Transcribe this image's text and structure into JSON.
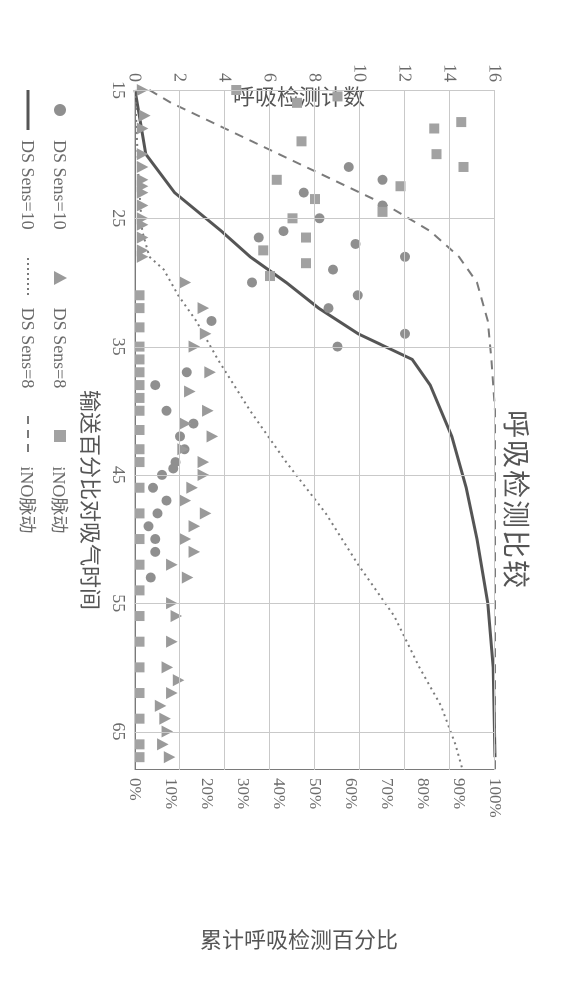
{
  "title": "呼吸检测比较",
  "axes": {
    "x": {
      "label": "输送百分比对吸气时间",
      "min": 15,
      "max": 68,
      "ticks": [
        15,
        25,
        35,
        45,
        55,
        65
      ]
    },
    "y_left": {
      "label": "呼吸检测计数",
      "min": 0,
      "max": 16,
      "ticks": [
        0,
        2,
        4,
        6,
        8,
        10,
        12,
        14,
        16
      ]
    },
    "y_right": {
      "label": "累计呼吸检测百分比",
      "min": 0,
      "max": 100,
      "ticks": [
        0,
        10,
        20,
        30,
        40,
        50,
        60,
        70,
        80,
        90,
        100
      ]
    }
  },
  "colors": {
    "background": "#ffffff",
    "plot_border": "#7a7a7a",
    "grid": "#c9c9c9",
    "text": "#6a6a6a",
    "series_circle": "#8f8f8f",
    "series_triangle": "#9a9a9a",
    "series_square": "#a2a2a2",
    "line_solid": "#555555",
    "line_dot": "#7a7a7a",
    "line_dash": "#7a7a7a"
  },
  "marker_style": {
    "circle_r": 5,
    "triangle_size": 11,
    "square_size": 10,
    "line_width_solid": 3,
    "line_width_dot": 2,
    "line_width_dash": 2
  },
  "series": {
    "circles": {
      "label": "DS Sens=10",
      "points": [
        [
          21,
          9.5
        ],
        [
          22,
          11
        ],
        [
          23,
          7.5
        ],
        [
          24,
          11
        ],
        [
          25,
          8.2
        ],
        [
          26,
          6.6
        ],
        [
          26.5,
          5.5
        ],
        [
          27,
          9.8
        ],
        [
          28,
          12
        ],
        [
          29,
          8.8
        ],
        [
          30,
          5.2
        ],
        [
          31,
          9.9
        ],
        [
          32,
          8.6
        ],
        [
          33,
          3.4
        ],
        [
          34,
          12
        ],
        [
          35,
          9.0
        ],
        [
          37,
          2.3
        ],
        [
          38,
          0.9
        ],
        [
          40,
          1.4
        ],
        [
          41,
          2.6
        ],
        [
          42,
          2.0
        ],
        [
          43,
          2.2
        ],
        [
          44,
          1.8
        ],
        [
          44.5,
          1.7
        ],
        [
          45,
          1.2
        ],
        [
          46,
          0.8
        ],
        [
          47,
          1.4
        ],
        [
          48,
          1.0
        ],
        [
          49,
          0.6
        ],
        [
          50,
          0.9
        ],
        [
          51,
          0.9
        ],
        [
          53,
          0.7
        ]
      ]
    },
    "triangles": {
      "label": "DS Sens=8",
      "points": [
        [
          15,
          0.3
        ],
        [
          17,
          0.4
        ],
        [
          18,
          0.3
        ],
        [
          20,
          0.3
        ],
        [
          21,
          0.3
        ],
        [
          22,
          0.3
        ],
        [
          22.5,
          0.3
        ],
        [
          23,
          0.3
        ],
        [
          24,
          0.3
        ],
        [
          25,
          0.3
        ],
        [
          25.5,
          0.3
        ],
        [
          26.5,
          0.3
        ],
        [
          27.5,
          0.3
        ],
        [
          28,
          0.3
        ],
        [
          30,
          2.2
        ],
        [
          32,
          3.0
        ],
        [
          34,
          3.1
        ],
        [
          35,
          2.6
        ],
        [
          37,
          3.3
        ],
        [
          38.5,
          2.4
        ],
        [
          40,
          3.2
        ],
        [
          41,
          2.2
        ],
        [
          42,
          3.4
        ],
        [
          43,
          2.1
        ],
        [
          44,
          3.0
        ],
        [
          45,
          3.0
        ],
        [
          46,
          2.5
        ],
        [
          47,
          2.2
        ],
        [
          48,
          3.1
        ],
        [
          49,
          2.6
        ],
        [
          50,
          2.2
        ],
        [
          51,
          2.6
        ],
        [
          52,
          1.6
        ],
        [
          53,
          2.3
        ],
        [
          55,
          1.6
        ],
        [
          56,
          1.8
        ],
        [
          58,
          1.6
        ],
        [
          60,
          1.4
        ],
        [
          61,
          1.9
        ],
        [
          62,
          1.6
        ],
        [
          63,
          1.1
        ],
        [
          64,
          1.3
        ],
        [
          65,
          1.4
        ],
        [
          66,
          1.2
        ],
        [
          67,
          1.5
        ]
      ]
    },
    "squares": {
      "label": "iNO脉动",
      "points": [
        [
          15,
          4.5
        ],
        [
          15.5,
          9.0
        ],
        [
          16,
          7.2
        ],
        [
          17.5,
          14.5
        ],
        [
          18,
          13.3
        ],
        [
          19,
          7.4
        ],
        [
          20,
          13.4
        ],
        [
          21,
          14.6
        ],
        [
          22,
          6.3
        ],
        [
          22.5,
          11.8
        ],
        [
          23.5,
          8.0
        ],
        [
          24.5,
          11.0
        ],
        [
          25,
          7.0
        ],
        [
          26.5,
          7.6
        ],
        [
          27.5,
          5.7
        ],
        [
          28.5,
          7.6
        ],
        [
          29.5,
          6.0
        ],
        [
          31,
          0.2
        ],
        [
          32,
          0.2
        ],
        [
          33.5,
          0.2
        ],
        [
          35,
          0.2
        ],
        [
          36,
          0.2
        ],
        [
          37,
          0.2
        ],
        [
          38,
          0.2
        ],
        [
          39,
          0.2
        ],
        [
          40,
          0.2
        ],
        [
          41.5,
          0.2
        ],
        [
          43,
          0.2
        ],
        [
          44,
          0.2
        ],
        [
          46,
          0.2
        ],
        [
          48,
          0.2
        ],
        [
          50,
          0.2
        ],
        [
          52,
          0.2
        ],
        [
          54,
          0.2
        ],
        [
          56,
          0.2
        ],
        [
          58,
          0.2
        ],
        [
          60,
          0.2
        ],
        [
          62,
          0.2
        ],
        [
          64,
          0.2
        ],
        [
          66,
          0.2
        ],
        [
          67,
          0.2
        ]
      ]
    }
  },
  "lines": {
    "solid": {
      "label": "DS Sens=10",
      "points": [
        [
          15,
          0
        ],
        [
          20,
          3
        ],
        [
          23,
          11
        ],
        [
          26,
          24
        ],
        [
          28,
          32
        ],
        [
          30,
          42
        ],
        [
          32,
          51
        ],
        [
          34,
          62
        ],
        [
          36,
          77
        ],
        [
          38,
          82
        ],
        [
          42,
          88
        ],
        [
          46,
          92
        ],
        [
          50,
          95
        ],
        [
          55,
          98
        ],
        [
          60,
          99.5
        ],
        [
          67,
          100
        ]
      ]
    },
    "dotted": {
      "label": "DS Sens=8",
      "points": [
        [
          15,
          0
        ],
        [
          22,
          1
        ],
        [
          26,
          2
        ],
        [
          28,
          4
        ],
        [
          29,
          8
        ],
        [
          31,
          12
        ],
        [
          33,
          17
        ],
        [
          36,
          23
        ],
        [
          40,
          32
        ],
        [
          44,
          42
        ],
        [
          48,
          53
        ],
        [
          52,
          62
        ],
        [
          56,
          72
        ],
        [
          60,
          79
        ],
        [
          63,
          85
        ],
        [
          66,
          89
        ],
        [
          68,
          91
        ]
      ]
    },
    "dashed": {
      "label": "iNO脉动",
      "points": [
        [
          15,
          4
        ],
        [
          16,
          10
        ],
        [
          18,
          25
        ],
        [
          20,
          40
        ],
        [
          22,
          55
        ],
        [
          24,
          70
        ],
        [
          26,
          82
        ],
        [
          28,
          90
        ],
        [
          30,
          95
        ],
        [
          33,
          98
        ],
        [
          36,
          99
        ],
        [
          40,
          100
        ],
        [
          50,
          100
        ],
        [
          60,
          100
        ],
        [
          68,
          100
        ]
      ]
    }
  },
  "legend": {
    "row1": [
      "DS Sens=10",
      "DS Sens=8",
      "iNO脉动"
    ],
    "row2": [
      "DS Sens=10",
      "DS Sens=8",
      "iNO脉动"
    ]
  }
}
